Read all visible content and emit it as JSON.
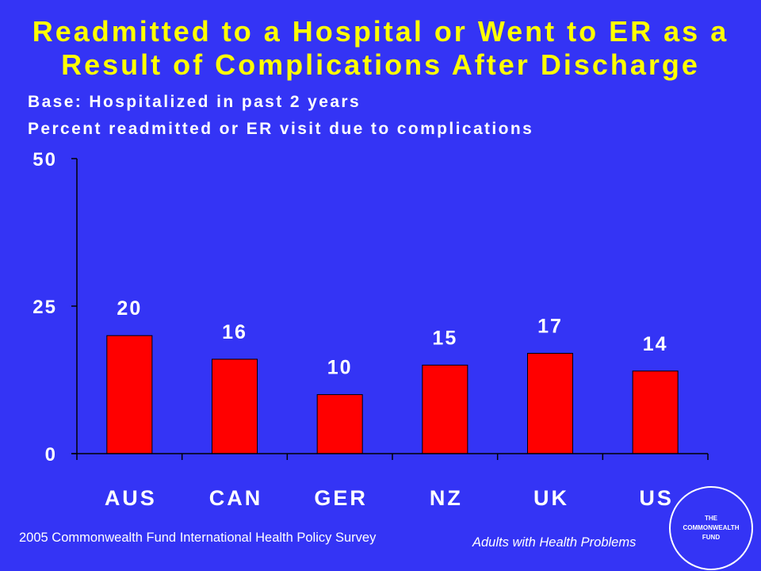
{
  "page": {
    "background": "#3434f5",
    "title_color": "#ffff00",
    "text_color": "#ffffff"
  },
  "chart_data": {
    "type": "bar",
    "title": [
      "Readmitted to a Hospital or Went to ER as a",
      "Result of Complications After Discharge"
    ],
    "subtitle": "Base: Hospitalized in past 2 years",
    "ylabel": "Percent readmitted or ER visit due to complications",
    "categories": [
      "AUS",
      "CAN",
      "GER",
      "NZ",
      "UK",
      "US"
    ],
    "values": [
      20,
      16,
      10,
      15,
      17,
      14
    ],
    "ylim": [
      0,
      50
    ],
    "yticks": [
      0,
      25,
      50
    ],
    "data_labels": true,
    "show_legend": false,
    "grid": false,
    "bar_color": "#ff0000",
    "axis_color": "#000000"
  },
  "footer": {
    "source": "2005 Commonwealth Fund International Health Policy Survey",
    "note": "Adults with Health Problems"
  },
  "logo": {
    "lines": [
      "THE",
      "COMMONWEALTH",
      "FUND"
    ]
  }
}
